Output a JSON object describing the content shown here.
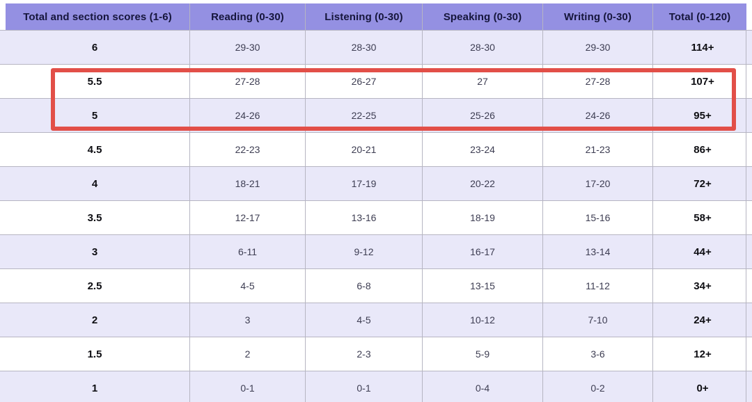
{
  "chart_data": {
    "type": "table",
    "columns": [
      "Total and section scores (1-6)",
      "Reading (0-30)",
      "Listening (0-30)",
      "Speaking (0-30)",
      "Writing (0-30)",
      "Total (0-120)"
    ],
    "rows": [
      [
        "6",
        "29-30",
        "28-30",
        "28-30",
        "29-30",
        "114+"
      ],
      [
        "5.5",
        "27-28",
        "26-27",
        "27",
        "27-28",
        "107+"
      ],
      [
        "5",
        "24-26",
        "22-25",
        "25-26",
        "24-26",
        "95+"
      ],
      [
        "4.5",
        "22-23",
        "20-21",
        "23-24",
        "21-23",
        "86+"
      ],
      [
        "4",
        "18-21",
        "17-19",
        "20-22",
        "17-20",
        "72+"
      ],
      [
        "3.5",
        "12-17",
        "13-16",
        "18-19",
        "15-16",
        "58+"
      ],
      [
        "3",
        "6-11",
        "9-12",
        "16-17",
        "13-14",
        "44+"
      ],
      [
        "2.5",
        "4-5",
        "6-8",
        "13-15",
        "11-12",
        "34+"
      ],
      [
        "2",
        "3",
        "4-5",
        "10-12",
        "7-10",
        "24+"
      ],
      [
        "1.5",
        "2",
        "2-3",
        "5-9",
        "3-6",
        "12+"
      ],
      [
        "1",
        "0-1",
        "0-1",
        "0-4",
        "0-2",
        "0+"
      ]
    ],
    "layout_hints": {
      "striped": true,
      "first_row_stripe": "lavender",
      "header_position": "top"
    }
  },
  "annotation": {
    "type": "highlight-box",
    "highlighted_rows": [
      "5.5",
      "5"
    ],
    "color": "#e24f48"
  },
  "colors": {
    "header_bg": "#9490e2",
    "header_text": "#16163c",
    "row_alt_bg": "#e9e8f9",
    "row_bg": "#ffffff",
    "cell_text": "#3d3d52",
    "strong_text": "#0d0d12",
    "border": "#b6b5c2",
    "annotation": "#e24f48"
  }
}
